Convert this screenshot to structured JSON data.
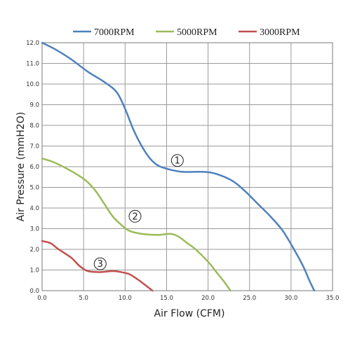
{
  "chart_data": {
    "type": "line",
    "title": "",
    "xlabel": "Air Flow (CFM)",
    "ylabel": "Air Pressure (mmH2O)",
    "xlim": [
      0,
      35
    ],
    "ylim": [
      0,
      12
    ],
    "x_ticks": [
      "0.0",
      "5.0",
      "10.0",
      "15.0",
      "20.0",
      "25.0",
      "30.0",
      "35.0"
    ],
    "y_ticks": [
      "0.0",
      "1.0",
      "2.0",
      "3.0",
      "4.0",
      "5.0",
      "6.0",
      "7.0",
      "8.0",
      "9.0",
      "10.0",
      "11.0",
      "12.0"
    ],
    "grid": true,
    "legend_position": "top",
    "series": [
      {
        "name": "7000RPM",
        "color": "#4f81bd",
        "points": [
          [
            0,
            12.0
          ],
          [
            1.5,
            11.7
          ],
          [
            3.5,
            11.2
          ],
          [
            5.5,
            10.6
          ],
          [
            7.5,
            10.1
          ],
          [
            9,
            9.6
          ],
          [
            10,
            8.8
          ],
          [
            11,
            7.8
          ],
          [
            12,
            7.0
          ],
          [
            13,
            6.4
          ],
          [
            14,
            6.05
          ],
          [
            15.5,
            5.85
          ],
          [
            17,
            5.75
          ],
          [
            19.5,
            5.75
          ],
          [
            21,
            5.65
          ],
          [
            23,
            5.3
          ],
          [
            24.5,
            4.8
          ],
          [
            26,
            4.2
          ],
          [
            27.5,
            3.6
          ],
          [
            29,
            2.9
          ],
          [
            30.5,
            1.9
          ],
          [
            31.5,
            1.15
          ],
          [
            32.2,
            0.5
          ],
          [
            32.8,
            0.0
          ]
        ]
      },
      {
        "name": "5000RPM",
        "color": "#9bbb59",
        "points": [
          [
            0,
            6.4
          ],
          [
            1.5,
            6.2
          ],
          [
            3,
            5.9
          ],
          [
            4.5,
            5.55
          ],
          [
            5.5,
            5.25
          ],
          [
            6.5,
            4.8
          ],
          [
            7.5,
            4.2
          ],
          [
            8.5,
            3.6
          ],
          [
            9.5,
            3.2
          ],
          [
            10.5,
            2.9
          ],
          [
            12,
            2.75
          ],
          [
            14,
            2.7
          ],
          [
            15.5,
            2.75
          ],
          [
            16.5,
            2.6
          ],
          [
            17.5,
            2.3
          ],
          [
            18.5,
            2.0
          ],
          [
            20,
            1.4
          ],
          [
            21,
            0.9
          ],
          [
            22,
            0.4
          ],
          [
            22.7,
            0.0
          ]
        ]
      },
      {
        "name": "3000RPM",
        "color": "#c0504d",
        "points": [
          [
            0,
            2.4
          ],
          [
            1,
            2.3
          ],
          [
            2,
            2.0
          ],
          [
            3.5,
            1.6
          ],
          [
            4.5,
            1.2
          ],
          [
            5.5,
            0.95
          ],
          [
            7,
            0.9
          ],
          [
            8.5,
            0.95
          ],
          [
            9.5,
            0.9
          ],
          [
            10.5,
            0.8
          ],
          [
            11.5,
            0.55
          ],
          [
            12.5,
            0.25
          ],
          [
            13.3,
            0.0
          ]
        ]
      }
    ],
    "annotations": [
      {
        "text": "①",
        "x": 16.3,
        "y": 6.3
      },
      {
        "text": "②",
        "x": 11.2,
        "y": 3.6
      },
      {
        "text": "③",
        "x": 7.0,
        "y": 1.3
      }
    ]
  }
}
